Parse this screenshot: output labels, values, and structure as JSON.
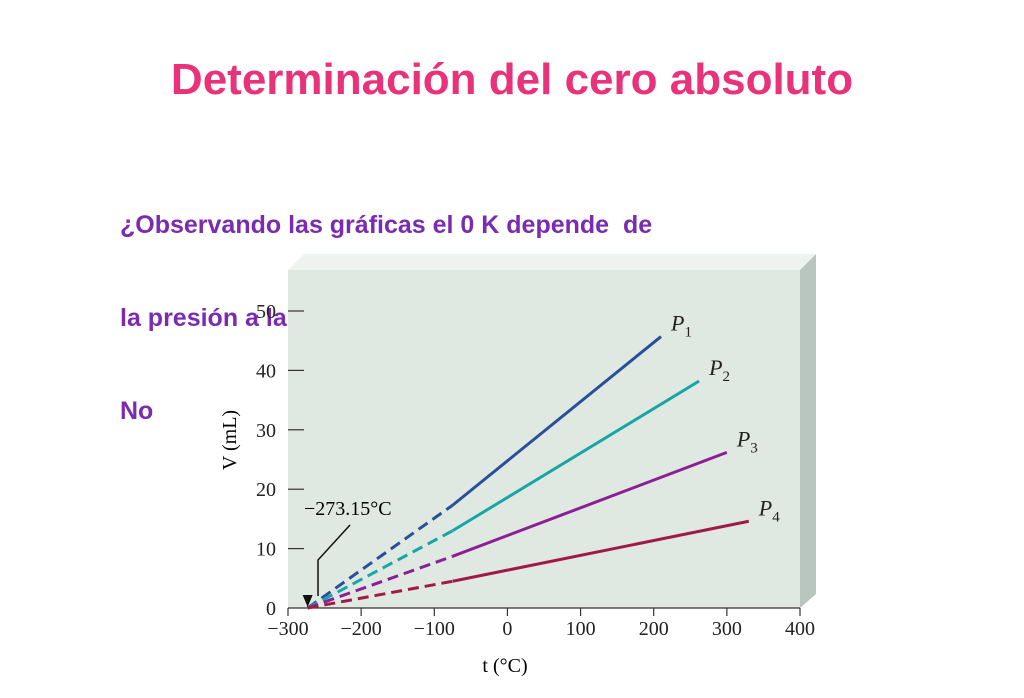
{
  "slide": {
    "title": "Determinación del cero absoluto",
    "question_line1": "¿Observando las gráficas el 0 K depende  de",
    "question_line2": "la presión a la que se encuentre el gas?",
    "answer": "No"
  },
  "colors": {
    "title": "#e8337a",
    "question": "#7a2bb0",
    "plot_background": "#dfe9e2",
    "panel_side": "#b9c6bf",
    "panel_top": "#eef3ef",
    "axis": "#333333"
  },
  "chart_data": {
    "type": "line",
    "title": "",
    "xlabel": "t (°C)",
    "ylabel": "V (mL)",
    "xlim": [
      -300,
      400
    ],
    "ylim": [
      0,
      50
    ],
    "x_ticks": [
      -300,
      -200,
      -100,
      0,
      100,
      200,
      300,
      400
    ],
    "x_tick_labels": [
      "−300",
      "−200",
      "−100",
      "0",
      "100",
      "200",
      "300",
      "400"
    ],
    "y_ticks": [
      0,
      10,
      20,
      30,
      40,
      50
    ],
    "y_tick_labels": [
      "0",
      "10",
      "20",
      "30",
      "40",
      "50"
    ],
    "grid": false,
    "annotation": {
      "text": "−273.15°C",
      "x": -273.15,
      "y": 0
    },
    "series": [
      {
        "name": "P1",
        "label_main": "P",
        "label_sub": "1",
        "color": "#2a4f9a",
        "dashed": [
          [
            -273.15,
            0
          ],
          [
            -75,
            17.3
          ]
        ],
        "solid": [
          [
            -75,
            17.3
          ],
          [
            210,
            45.7
          ]
        ]
      },
      {
        "name": "P2",
        "label_main": "P",
        "label_sub": "2",
        "color": "#1aa5a5",
        "dashed": [
          [
            -273.15,
            0
          ],
          [
            -75,
            13.0
          ]
        ],
        "solid": [
          [
            -75,
            13.0
          ],
          [
            262,
            38.2
          ]
        ]
      },
      {
        "name": "P3",
        "label_main": "P",
        "label_sub": "3",
        "color": "#8b1f94",
        "dashed": [
          [
            -273.15,
            0
          ],
          [
            -75,
            8.7
          ]
        ],
        "solid": [
          [
            -75,
            8.7
          ],
          [
            300,
            26.2
          ]
        ]
      },
      {
        "name": "P4",
        "label_main": "P",
        "label_sub": "4",
        "color": "#a01a47",
        "dashed": [
          [
            -273.15,
            0
          ],
          [
            -75,
            4.5
          ]
        ],
        "solid": [
          [
            -75,
            4.5
          ],
          [
            330,
            14.6
          ]
        ]
      }
    ]
  }
}
